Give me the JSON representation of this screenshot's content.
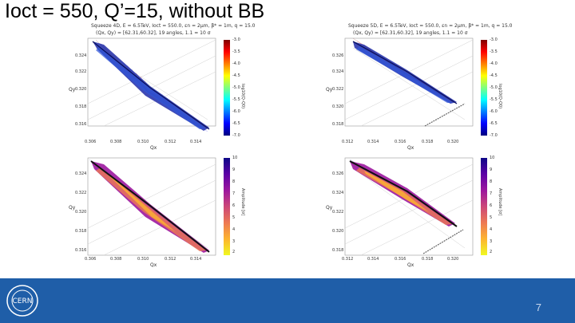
{
  "slide": {
    "title": "Ioct = 550, Q’=15, without BB",
    "page_number": "7"
  },
  "panels": [
    {
      "id": "tl",
      "header1": "Squeeze 4D, E = 6.5TeV, Ioct = 550.0, εn = 2μm, β* = 1m, q = 15.0",
      "header2": "(Qx, Qy) = [62.31,60.32], 19 angles, 1.1 = 10 σ",
      "xticks": [
        "0.306",
        "0.308",
        "0.310",
        "0.312",
        "0.314"
      ],
      "yticks": [
        "0.324",
        "0.322",
        "0.320",
        "0.318",
        "0.316"
      ],
      "xlabel": "Qx",
      "ylabel": "Qy",
      "cbar_ticks": [
        "-3.0",
        "-3.5",
        "-4.0",
        "-4.5",
        "-5.0",
        "-5.5",
        "-6.0",
        "-6.5",
        "-7.0"
      ],
      "cbar_label": "log10(Q-Q0)",
      "colormap": "jet"
    },
    {
      "id": "tr",
      "header1": "Squeeze 5D, E = 6.5TeV, Ioct = 550.0, εn = 2μm, β* = 1m, q = 15.0",
      "header2": "(Qx, Qy) = [62.31,60.32], 19 angles, 1.1 = 10 σ",
      "xticks": [
        "0.312",
        "0.314",
        "0.316",
        "0.318",
        "0.320"
      ],
      "yticks": [
        "0.326",
        "0.324",
        "0.322",
        "0.320",
        "0.318"
      ],
      "xlabel": "Qx",
      "ylabel": "Qy",
      "cbar_ticks": [
        "-3.0",
        "-3.5",
        "-4.0",
        "-4.5",
        "-5.0",
        "-5.5",
        "-6.0",
        "-6.5",
        "-7.0"
      ],
      "cbar_label": "log10(Q-Q0)",
      "colormap": "jet"
    },
    {
      "id": "bl",
      "header1": "",
      "header2": "",
      "xticks": [
        "0.306",
        "0.308",
        "0.310",
        "0.312",
        "0.314"
      ],
      "yticks": [
        "0.324",
        "0.322",
        "0.320",
        "0.318",
        "0.316"
      ],
      "xlabel": "Qx",
      "ylabel": "Qy",
      "cbar_ticks": [
        "10",
        "9",
        "8",
        "7",
        "6",
        "5",
        "4",
        "3",
        "2"
      ],
      "cbar_label": "Amplitude [σ]",
      "colormap": "plasma"
    },
    {
      "id": "br",
      "header1": "",
      "header2": "",
      "xticks": [
        "0.312",
        "0.314",
        "0.316",
        "0.318",
        "0.320"
      ],
      "yticks": [
        "0.326",
        "0.324",
        "0.322",
        "0.320",
        "0.318"
      ],
      "xlabel": "Qx",
      "ylabel": "Qy",
      "cbar_ticks": [
        "10",
        "9",
        "8",
        "7",
        "6",
        "5",
        "4",
        "3",
        "2"
      ],
      "cbar_label": "Amplitude [σ]",
      "colormap": "plasma"
    }
  ],
  "footer": {
    "logo_text": "CERN",
    "logo_name": "cern-logo",
    "background_color": "#1f5ea8"
  },
  "colors": {
    "jet": [
      "#7f0000",
      "#ff0000",
      "#ff7f00",
      "#ffff00",
      "#7fff7f",
      "#00ffff",
      "#007fff",
      "#0000ff",
      "#00007f"
    ],
    "plasma": [
      "#0d0887",
      "#5c01a6",
      "#9c179e",
      "#cc4778",
      "#ed7953",
      "#fdb42f",
      "#f0f921"
    ]
  }
}
